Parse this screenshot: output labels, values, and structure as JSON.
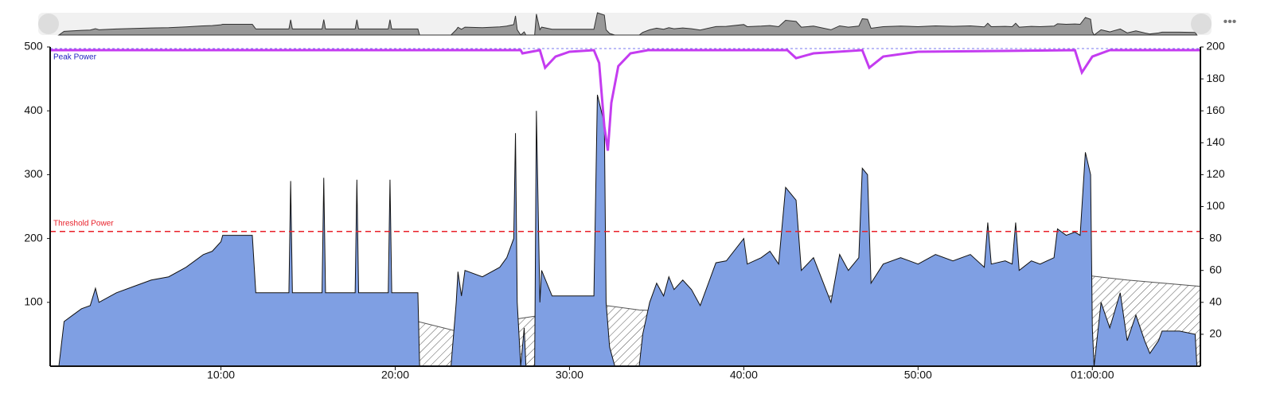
{
  "chart_data": {
    "type": "area",
    "xlim": [
      0.2,
      66.2
    ],
    "xticks": [
      {
        "value": 10,
        "label": "10:00"
      },
      {
        "value": 20,
        "label": "20:00"
      },
      {
        "value": 30,
        "label": "30:00"
      },
      {
        "value": 40,
        "label": "40:00"
      },
      {
        "value": 50,
        "label": "50:00"
      },
      {
        "value": 60,
        "label": "01:00:00"
      }
    ],
    "ylim": [
      0,
      500
    ],
    "yticks": [
      100,
      200,
      300,
      400,
      500
    ],
    "y2lim": [
      0,
      200
    ],
    "y2ticks": [
      20,
      40,
      60,
      80,
      100,
      120,
      140,
      160,
      180,
      200
    ],
    "series": [
      {
        "color": "#7f9fe3",
        "x": [
          0.7,
          1.0,
          1.5,
          2.0,
          2.5,
          2.8,
          3.0,
          4,
          5,
          6,
          7,
          8,
          9,
          9.5,
          10,
          10.1,
          11,
          11.8,
          12,
          13,
          13.9,
          14.0,
          14.1,
          15,
          15.8,
          15.9,
          16.0,
          17,
          17.7,
          17.8,
          17.9,
          19,
          19.6,
          19.7,
          19.8,
          21.3,
          21.4,
          23.2,
          23.5,
          23.6,
          23.8,
          24,
          25,
          26,
          26.4,
          26.8,
          26.9,
          27.0,
          27.2,
          27.4,
          27.5,
          28.0,
          28.1,
          28.3,
          28.4,
          29,
          31,
          31.4,
          31.6,
          32.0,
          32.1,
          32.3,
          32.6,
          34,
          34.2,
          34.6,
          35,
          35.4,
          35.7,
          36,
          36.5,
          37,
          37.5,
          38.4,
          39,
          40.0,
          40.2,
          41,
          41.5,
          42,
          42.4,
          43,
          43.3,
          44,
          45,
          45.5,
          46,
          46.6,
          46.8,
          47.1,
          47.3,
          48,
          49,
          50,
          51,
          52,
          53,
          53.8,
          54.0,
          54.2,
          55,
          55.4,
          55.6,
          55.8,
          56.5,
          57,
          57.8,
          58.0,
          58.5,
          59,
          59.3,
          59.6,
          59.9,
          60.0,
          60.1,
          60.5,
          61,
          61.6,
          62,
          62.5,
          63,
          63.3,
          63.8,
          64,
          65,
          65.9,
          66.0
        ],
        "values": [
          0,
          70,
          80,
          90,
          95,
          122,
          100,
          115,
          125,
          135,
          140,
          155,
          175,
          180,
          195,
          205,
          205,
          205,
          115,
          115,
          115,
          290,
          115,
          115,
          115,
          295,
          115,
          115,
          115,
          292,
          115,
          115,
          115,
          292,
          115,
          115,
          0,
          0,
          100,
          148,
          110,
          150,
          140,
          155,
          170,
          200,
          365,
          100,
          0,
          60,
          0,
          0,
          400,
          100,
          150,
          110,
          110,
          110,
          425,
          380,
          100,
          30,
          0,
          0,
          50,
          100,
          130,
          110,
          140,
          120,
          135,
          120,
          95,
          162,
          165,
          200,
          160,
          170,
          180,
          160,
          280,
          260,
          150,
          170,
          100,
          175,
          150,
          170,
          310,
          300,
          130,
          160,
          170,
          160,
          175,
          165,
          175,
          155,
          225,
          160,
          165,
          160,
          225,
          150,
          165,
          160,
          170,
          215,
          205,
          210,
          205,
          335,
          300,
          60,
          0,
          100,
          60,
          115,
          40,
          80,
          40,
          20,
          40,
          55,
          55,
          50,
          0
        ]
      },
      {
        "pattern": "hatch",
        "color": "#555555",
        "x": [
          21.3,
          23.5,
          27.2,
          32.1,
          34,
          37,
          45,
          59.4,
          62,
          66.2
        ],
        "values": [
          70,
          55,
          75,
          95,
          88,
          85,
          110,
          143,
          135,
          125
        ]
      },
      {
        "name": "Peak Power",
        "axis": "y2",
        "color": "#c43cf0",
        "x": [
          0.2,
          27.2,
          27.3,
          28.3,
          28.6,
          29.2,
          30,
          31.4,
          31.7,
          32.0,
          32.2,
          32.4,
          32.8,
          33.5,
          34.5,
          42.5,
          43,
          44,
          46.8,
          47.2,
          48,
          50,
          59.0,
          59.4,
          60,
          61,
          66.2
        ],
        "values": [
          198,
          198,
          196,
          198,
          187,
          194,
          197,
          198,
          190,
          150,
          135,
          165,
          188,
          196,
          198,
          198,
          193,
          196,
          198,
          187,
          194,
          197,
          198,
          184,
          194,
          198,
          198
        ]
      }
    ],
    "hlines": [
      {
        "label": "Threshold Power",
        "value": 211,
        "color": "#e8202a"
      }
    ]
  }
}
